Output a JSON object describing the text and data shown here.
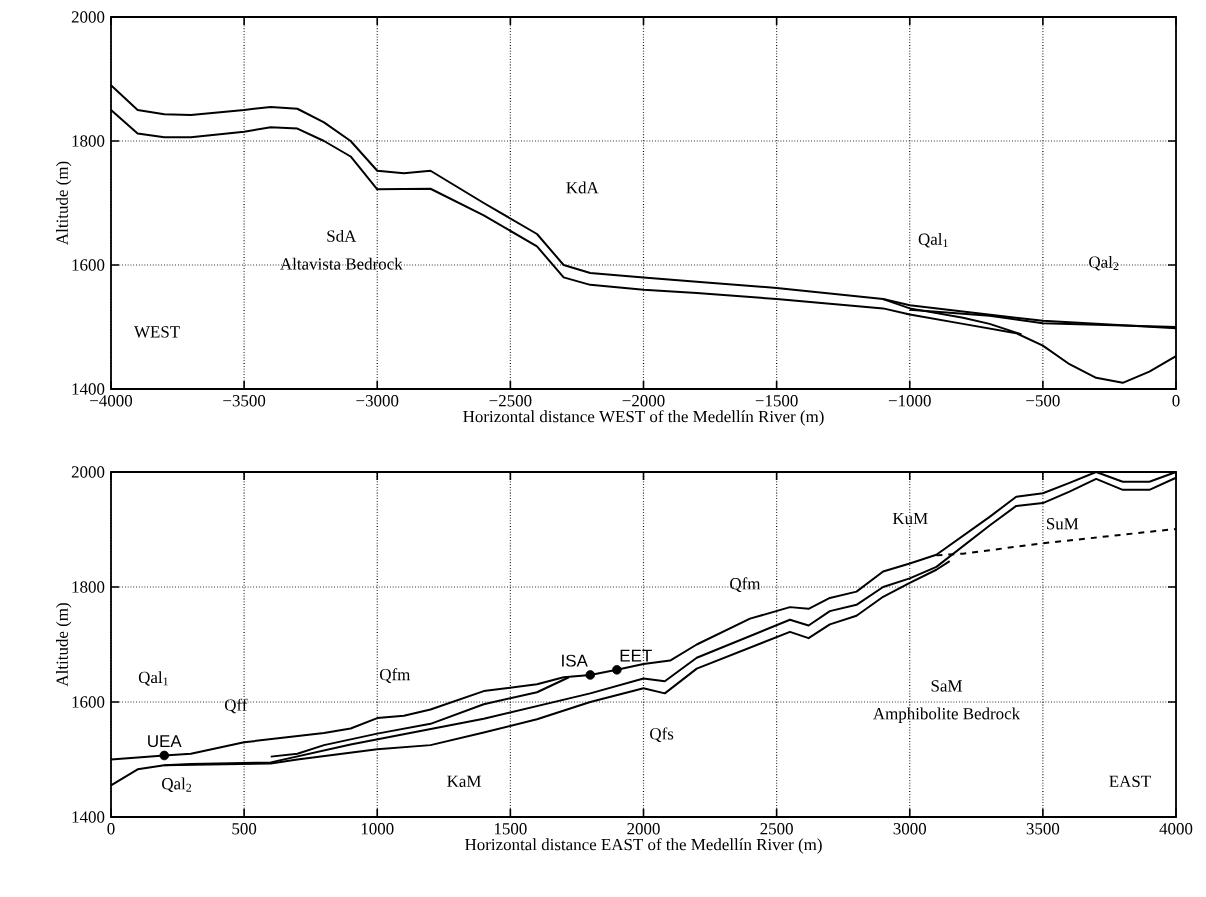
{
  "chart_data": [
    {
      "type": "line",
      "xlabel": "Horizontal distance WEST of the Medellín River (m)",
      "ylabel": "Altitude (m)",
      "grid": true,
      "xlim": [
        -4000,
        0
      ],
      "ylim": [
        1400,
        2000
      ],
      "xticks": [
        {
          "value": -4000,
          "label": "−4000"
        },
        {
          "value": -3500,
          "label": "−3500"
        },
        {
          "value": -3000,
          "label": "−3000"
        },
        {
          "value": -2500,
          "label": "−2500"
        },
        {
          "value": -2000,
          "label": "−2000"
        },
        {
          "value": -1500,
          "label": "−1500"
        },
        {
          "value": -1000,
          "label": "−1000"
        },
        {
          "value": -500,
          "label": "−500"
        },
        0
      ],
      "yticks": [
        1400,
        1600,
        1800,
        2000
      ],
      "series": [
        {
          "type": "line",
          "color": "#000000",
          "x": [
            -4000,
            -3900,
            -3800,
            -3700,
            -3500,
            -3400,
            -3300,
            -3200,
            -3100,
            -3000,
            -2900,
            -2800,
            -2600,
            -2400,
            -2300,
            -2200,
            -2000,
            -1800,
            -1500,
            -1100,
            -1000,
            -500,
            0
          ],
          "values": [
            1890,
            1850,
            1843,
            1842,
            1850,
            1855,
            1852,
            1830,
            1800,
            1752,
            1748,
            1752,
            1700,
            1650,
            1600,
            1587,
            1580,
            1573,
            1563,
            1545,
            1535,
            1510,
            1498
          ]
        },
        {
          "type": "line",
          "color": "#000000",
          "x": [
            -4000,
            -3900,
            -3800,
            -3700,
            -3500,
            -3400,
            -3300,
            -3200,
            -3100,
            -3000,
            -2800,
            -2600,
            -2400,
            -2300,
            -2200,
            -2000,
            -1800,
            -1500,
            -1100,
            -1000,
            -800,
            -600,
            -500,
            -400,
            -300,
            -200,
            -100,
            0
          ],
          "values": [
            1850,
            1812,
            1806,
            1806,
            1815,
            1822,
            1820,
            1800,
            1775,
            1722,
            1723,
            1680,
            1630,
            1580,
            1568,
            1560,
            1555,
            1545,
            1530,
            1520,
            1505,
            1490,
            1470,
            1440,
            1418,
            1410,
            1428,
            1453
          ]
        },
        {
          "type": "line",
          "color": "#000000",
          "x": [
            -1100,
            -1000,
            -800,
            -700,
            -580
          ],
          "values": [
            1545,
            1530,
            1515,
            1505,
            1488
          ]
        },
        {
          "type": "line",
          "color": "#000000",
          "x": [
            -1000,
            -700,
            -500,
            0
          ],
          "values": [
            1528,
            1518,
            1506,
            1500
          ]
        }
      ],
      "annotations": [
        "KdA",
        "SdA",
        "Altavista Bedrock",
        "Qal$_{1}$",
        "Qal$_{2}$",
        "WEST"
      ]
    },
    {
      "type": "line",
      "xlabel": "Horizontal distance EAST of the Medellín River (m)",
      "ylabel": "Altitude (m)",
      "grid": true,
      "xlim": [
        0,
        4000
      ],
      "ylim": [
        1400,
        2000
      ],
      "xticks": [
        0,
        500,
        1000,
        1500,
        2000,
        2500,
        3000,
        3500,
        4000
      ],
      "yticks": [
        1400,
        1600,
        1800,
        2000
      ],
      "series": [
        {
          "type": "line",
          "color": "#000000",
          "x": [
            0,
            200,
            300,
            500,
            800,
            900,
            1000,
            1100,
            1200,
            1400,
            1600,
            1700,
            1800,
            1900,
            2000,
            2100,
            2200,
            2400,
            2550,
            2620,
            2700,
            2800,
            2900,
            3000,
            3100,
            3300,
            3400,
            3500,
            3600,
            3700,
            3800,
            3900,
            4000
          ],
          "values": [
            1500,
            1507,
            1510,
            1530,
            1546,
            1554,
            1572,
            1576,
            1587,
            1619,
            1631,
            1643,
            1647,
            1656,
            1666,
            1672,
            1700,
            1745,
            1765,
            1762,
            1781,
            1792,
            1827,
            1841,
            1856,
            1922,
            1957,
            1963,
            1981,
            2000,
            1983,
            1983,
            2000
          ]
        },
        {
          "type": "line",
          "color": "#000000",
          "x": [
            600,
            700,
            800,
            1000,
            1200,
            1400,
            1600,
            1720
          ],
          "values": [
            1505,
            1510,
            1525,
            1545,
            1562,
            1596,
            1617,
            1643
          ]
        },
        {
          "color": "#000000",
          "x": [
            0,
            100,
            200,
            300,
            600,
            900,
            1400,
            1800,
            2000,
            2080,
            2200,
            2550,
            2620,
            2700,
            2800,
            2900,
            3000,
            3100,
            3300,
            3400,
            3500,
            3600,
            3700,
            3800,
            3900,
            4000
          ],
          "values": [
            1455,
            1483,
            1490,
            1492,
            1495,
            1526,
            1571,
            1615,
            1641,
            1636,
            1677,
            1743,
            1733,
            1758,
            1769,
            1800,
            1815,
            1835,
            1907,
            1941,
            1946,
            1966,
            1988,
            1969,
            1969,
            1990
          ]
        },
        {
          "type": "line",
          "color": "#000000",
          "x": [
            200,
            600,
            700,
            1000,
            1200,
            1400,
            1600,
            1800,
            2000,
            2080,
            2200,
            2550,
            2620,
            2700,
            2800,
            2900,
            3000,
            3100,
            3150
          ],
          "values": [
            1490,
            1493,
            1500,
            1518,
            1525,
            1547,
            1570,
            1600,
            1624,
            1615,
            1658,
            1722,
            1711,
            1735,
            1750,
            1783,
            1807,
            1830,
            1845
          ]
        },
        {
          "type": "line",
          "color": "#000000",
          "line_style": "dashed",
          "x": [
            3100,
            3200,
            3500,
            4000
          ],
          "values": [
            1855,
            1858,
            1876,
            1901
          ]
        },
        {
          "type": "scatter",
          "name": "UEA",
          "color": "#000000",
          "marker": "circle",
          "x": [
            200
          ],
          "values": [
            1507
          ]
        },
        {
          "type": "scatter",
          "name": "ISA",
          "color": "#000000",
          "marker": "circle",
          "x": [
            1800
          ],
          "values": [
            1647
          ]
        },
        {
          "type": "scatter",
          "name": "EET",
          "color": "#000000",
          "marker": "circle",
          "x": [
            1900
          ],
          "values": [
            1656
          ]
        }
      ],
      "annotations": [
        "Qal$_{1}$",
        "Qff",
        "Qal$_{2}$",
        "Qfm",
        "Qfm",
        "Qfs",
        "KaM",
        "KuM",
        "SuM",
        "SaM",
        "Amphibolite Bedrock",
        "EAST"
      ]
    }
  ]
}
